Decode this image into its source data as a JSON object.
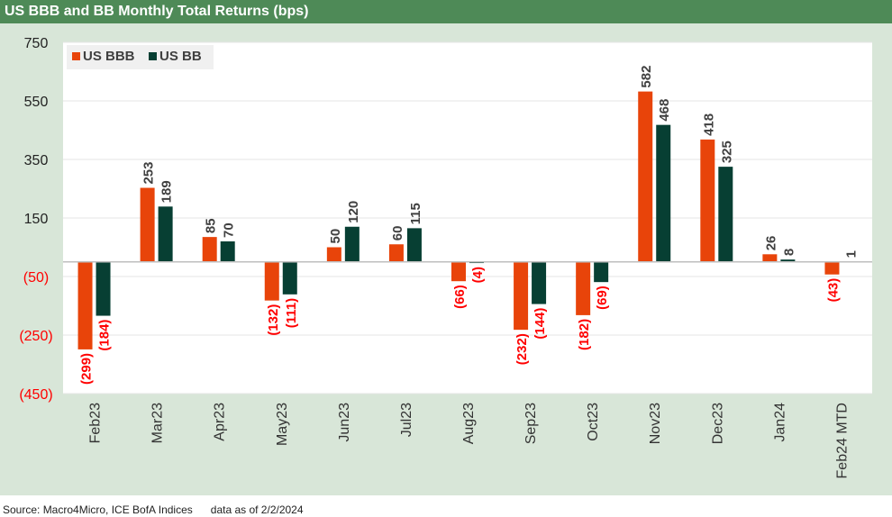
{
  "header": {
    "title": "US BBB and BB Monthly Total Returns (bps)"
  },
  "footer": {
    "source": "Source: Macro4Micro, ICE BofA Indices",
    "asof": "data as of 2/2/2024"
  },
  "colors": {
    "bbb": "#e8440a",
    "bb": "#073f33",
    "negative_label": "#ff0000",
    "positive_label": "#404040",
    "title_bar": "#4e8a57",
    "panel": "#d8e6d8"
  },
  "chart_data": {
    "type": "bar",
    "title": "US BBB and BB Monthly Total Returns (bps)",
    "xlabel": "",
    "ylabel": "",
    "ylim": [
      -450,
      750
    ],
    "yticks": [
      750,
      550,
      350,
      150,
      -50,
      -250,
      -450
    ],
    "ytick_labels": [
      "750",
      "550",
      "350",
      "150",
      "(50)",
      "(250)",
      "(450)"
    ],
    "grid": true,
    "legend": "top-left",
    "categories": [
      "Feb23",
      "Mar23",
      "Apr23",
      "May23",
      "Jun23",
      "Jul23",
      "Aug23",
      "Sep23",
      "Oct23",
      "Nov23",
      "Dec23",
      "Jan24",
      "Feb24 MTD"
    ],
    "series": [
      {
        "name": "US BBB",
        "values": [
          -299,
          253,
          85,
          -132,
          50,
          60,
          -66,
          -232,
          -182,
          582,
          418,
          26,
          -43
        ],
        "labels": [
          "(299)",
          "253",
          "85",
          "(132)",
          "50",
          "60",
          "(66)",
          "(232)",
          "(182)",
          "582",
          "418",
          "26",
          "(43)"
        ]
      },
      {
        "name": "US BB",
        "values": [
          -184,
          189,
          70,
          -111,
          120,
          115,
          -4,
          -144,
          -69,
          468,
          325,
          8,
          1
        ],
        "labels": [
          "(184)",
          "189",
          "70",
          "(111)",
          "120",
          "115",
          "(4)",
          "(144)",
          "(69)",
          "468",
          "325",
          "8",
          "1"
        ]
      }
    ]
  }
}
